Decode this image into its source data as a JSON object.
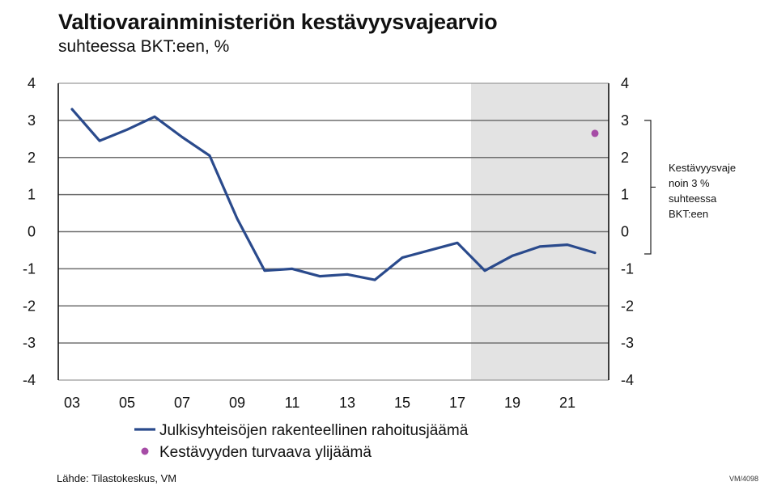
{
  "chart_data": {
    "type": "line",
    "title": "Valtiovarainministeriön kestävyysvajearvio",
    "subtitle": "suhteessa BKT:een, %",
    "x": [
      2003,
      2004,
      2005,
      2006,
      2007,
      2008,
      2009,
      2010,
      2011,
      2012,
      2013,
      2014,
      2015,
      2016,
      2017,
      2018,
      2019,
      2020,
      2021,
      2022
    ],
    "x_tick_labels": [
      "03",
      "05",
      "07",
      "09",
      "11",
      "13",
      "15",
      "17",
      "19",
      "21"
    ],
    "x_tick_years": [
      2003,
      2005,
      2007,
      2009,
      2011,
      2013,
      2015,
      2017,
      2019,
      2021
    ],
    "series": [
      {
        "name": "Julkisyhteisöjen rakenteellinen rahoitusjäämä",
        "color": "#2a4a8c",
        "values": [
          3.3,
          2.45,
          2.75,
          3.1,
          2.55,
          2.05,
          0.35,
          -1.05,
          -1.0,
          -1.2,
          -1.15,
          -1.3,
          -0.7,
          -0.5,
          -0.3,
          -1.05,
          -0.65,
          -0.4,
          -0.35,
          -0.57
        ]
      },
      {
        "name": "Kestävyyden turvaava ylijäämä",
        "color": "#a64ca6",
        "type": "scatter",
        "points": [
          {
            "x": 2022,
            "y": 2.65
          }
        ]
      }
    ],
    "ylim": [
      -4,
      4
    ],
    "y_ticks": [
      "4",
      "3",
      "2",
      "1",
      "0",
      "-1",
      "-2",
      "-3",
      "-4"
    ],
    "y_tick_values": [
      4,
      3,
      2,
      1,
      0,
      -1,
      -2,
      -3,
      -4
    ],
    "forecast_shade_from": 2017.5,
    "shade_color": "#e3e3e3",
    "grid": true,
    "annotation": {
      "lines": [
        "Kestävyysvaje",
        "noin 3 %",
        "suhteessa",
        "BKT:een"
      ],
      "from": 3.0,
      "to": -0.6
    },
    "legend_position": "bottom-left"
  },
  "source": "Lähde: Tilastokeskus, VM",
  "figure_code": "VM/4098"
}
